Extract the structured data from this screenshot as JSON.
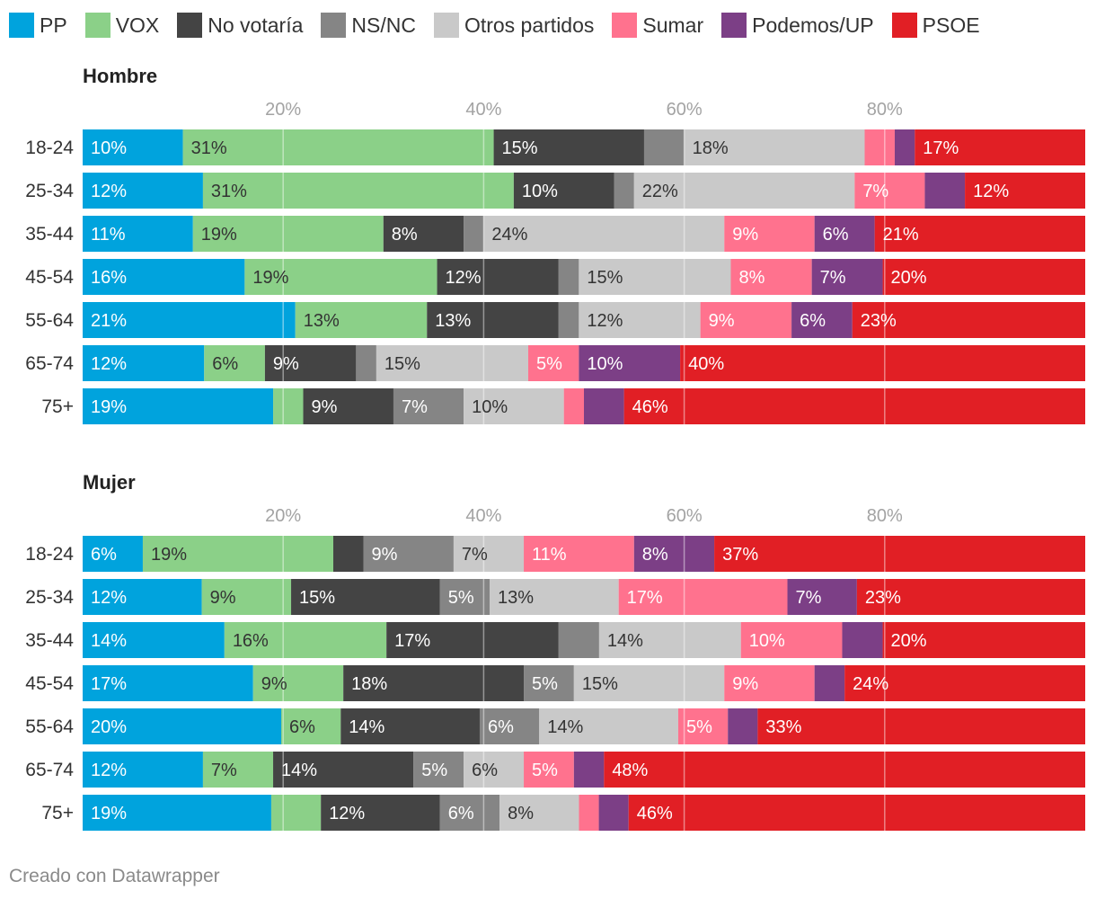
{
  "legend": [
    {
      "name": "PP",
      "color": "#00a3dd"
    },
    {
      "name": "VOX",
      "color": "#8bd088"
    },
    {
      "name": "No votaría",
      "color": "#444444"
    },
    {
      "name": "NS/NC",
      "color": "#858585"
    },
    {
      "name": "Otros partidos",
      "color": "#c9c9c9"
    },
    {
      "name": "Sumar",
      "color": "#ff728e"
    },
    {
      "name": "Podemos/UP",
      "color": "#7c3f86"
    },
    {
      "name": "PSOE",
      "color": "#e11f25"
    }
  ],
  "credit": "Creado con Datawrapper",
  "chart_data": [
    {
      "type": "bar",
      "stacked": true,
      "orientation": "horizontal",
      "title": "Hombre",
      "categories": [
        "18-24",
        "25-34",
        "35-44",
        "45-54",
        "55-64",
        "65-74",
        "75+"
      ],
      "xlim": [
        0,
        100
      ],
      "ticks": [
        20,
        40,
        60,
        80
      ],
      "tick_labels": [
        "20%",
        "40%",
        "60%",
        "80%"
      ],
      "series": [
        {
          "name": "PP",
          "values": [
            10,
            12,
            11,
            16,
            21,
            12,
            19
          ],
          "labels": [
            "10%",
            "12%",
            "11%",
            "16%",
            "21%",
            "12%",
            "19%"
          ]
        },
        {
          "name": "VOX",
          "values": [
            31,
            31,
            19,
            19,
            13,
            6,
            3
          ],
          "labels": [
            "31%",
            "31%",
            "19%",
            "19%",
            "13%",
            "6%",
            ""
          ]
        },
        {
          "name": "No votaría",
          "values": [
            15,
            10,
            8,
            12,
            13,
            9,
            9
          ],
          "labels": [
            "15%",
            "10%",
            "8%",
            "12%",
            "13%",
            "9%",
            "9%"
          ]
        },
        {
          "name": "NS/NC",
          "values": [
            4,
            2,
            2,
            2,
            2,
            2,
            7
          ],
          "labels": [
            "",
            "",
            "",
            "",
            "",
            "",
            "7%"
          ]
        },
        {
          "name": "Otros partidos",
          "values": [
            18,
            22,
            24,
            15,
            12,
            15,
            10
          ],
          "labels": [
            "18%",
            "22%",
            "24%",
            "15%",
            "12%",
            "15%",
            "10%"
          ]
        },
        {
          "name": "Sumar",
          "values": [
            3,
            7,
            9,
            8,
            9,
            5,
            2
          ],
          "labels": [
            "",
            "7%",
            "9%",
            "8%",
            "9%",
            "5%",
            ""
          ]
        },
        {
          "name": "Podemos/UP",
          "values": [
            2,
            4,
            6,
            7,
            6,
            10,
            4
          ],
          "labels": [
            "",
            "",
            "6%",
            "7%",
            "6%",
            "10%",
            ""
          ]
        },
        {
          "name": "PSOE",
          "values": [
            17,
            12,
            21,
            20,
            23,
            40,
            46
          ],
          "labels": [
            "17%",
            "12%",
            "21%",
            "20%",
            "23%",
            "40%",
            "46%"
          ]
        }
      ]
    },
    {
      "type": "bar",
      "stacked": true,
      "orientation": "horizontal",
      "title": "Mujer",
      "categories": [
        "18-24",
        "25-34",
        "35-44",
        "45-54",
        "55-64",
        "65-74",
        "75+"
      ],
      "xlim": [
        0,
        100
      ],
      "ticks": [
        20,
        40,
        60,
        80
      ],
      "tick_labels": [
        "20%",
        "40%",
        "60%",
        "80%"
      ],
      "series": [
        {
          "name": "PP",
          "values": [
            6,
            12,
            14,
            17,
            20,
            12,
            19
          ],
          "labels": [
            "6%",
            "12%",
            "14%",
            "17%",
            "20%",
            "12%",
            "19%"
          ]
        },
        {
          "name": "VOX",
          "values": [
            19,
            9,
            16,
            9,
            6,
            7,
            5
          ],
          "labels": [
            "19%",
            "9%",
            "16%",
            "9%",
            "6%",
            "7%",
            ""
          ]
        },
        {
          "name": "No votaría",
          "values": [
            3,
            15,
            17,
            18,
            14,
            14,
            12
          ],
          "labels": [
            "",
            "15%",
            "17%",
            "18%",
            "14%",
            "14%",
            "12%"
          ]
        },
        {
          "name": "NS/NC",
          "values": [
            9,
            5,
            4,
            5,
            6,
            5,
            6
          ],
          "labels": [
            "9%",
            "5%",
            "",
            "5%",
            "6%",
            "5%",
            "6%"
          ]
        },
        {
          "name": "Otros partidos",
          "values": [
            7,
            13,
            14,
            15,
            14,
            6,
            8
          ],
          "labels": [
            "7%",
            "13%",
            "14%",
            "15%",
            "14%",
            "6%",
            "8%"
          ]
        },
        {
          "name": "Sumar",
          "values": [
            11,
            17,
            10,
            9,
            5,
            5,
            2
          ],
          "labels": [
            "11%",
            "17%",
            "10%",
            "9%",
            "5%",
            "5%",
            ""
          ]
        },
        {
          "name": "Podemos/UP",
          "values": [
            8,
            7,
            4,
            3,
            3,
            3,
            3
          ],
          "labels": [
            "8%",
            "7%",
            "",
            "",
            "",
            "",
            ""
          ]
        },
        {
          "name": "PSOE",
          "values": [
            37,
            23,
            20,
            24,
            33,
            48,
            46
          ],
          "labels": [
            "37%",
            "23%",
            "20%",
            "24%",
            "33%",
            "48%",
            "46%"
          ]
        }
      ]
    }
  ]
}
